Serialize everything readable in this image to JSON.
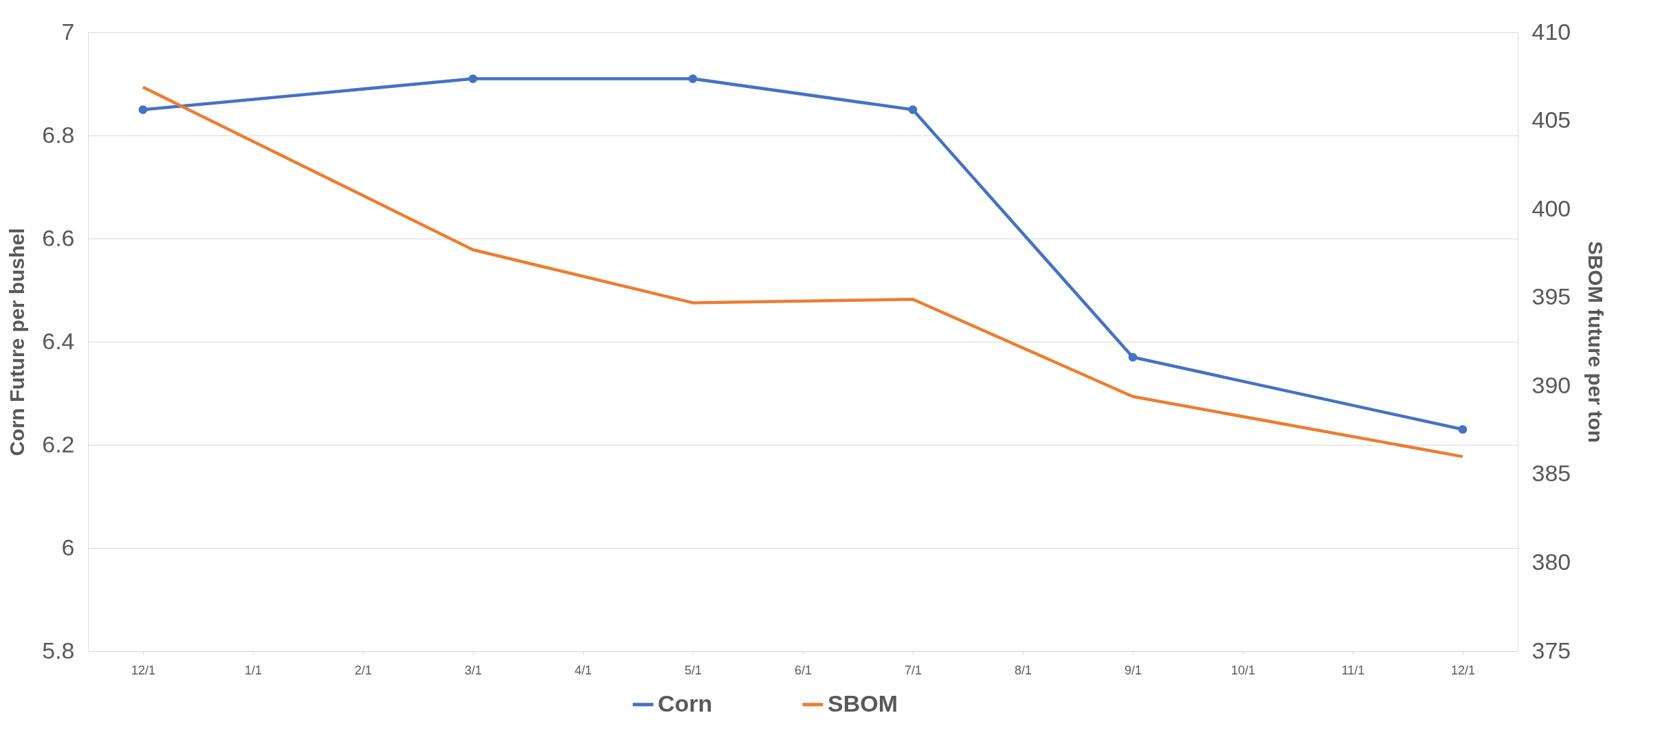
{
  "chart_data": {
    "type": "line",
    "categories": [
      "12/1",
      "1/1",
      "2/1",
      "3/1",
      "4/1",
      "5/1",
      "6/1",
      "7/1",
      "8/1",
      "9/1",
      "10/1",
      "11/1",
      "12/1"
    ],
    "ylabel": "Corn Future per bushel",
    "y2label": "SBOM future per ton",
    "ylim": [
      5.8,
      7
    ],
    "yticks": [
      5.8,
      6,
      6.2,
      6.4,
      6.6,
      6.8,
      7
    ],
    "y2lim": [
      375,
      410
    ],
    "y2ticks": [
      375,
      380,
      385,
      390,
      395,
      400,
      405,
      410
    ],
    "grid": "y",
    "legend": "bottom",
    "series": [
      {
        "name": "Corn",
        "color": "#4472c4",
        "marker": "circle",
        "values": [
          6.85,
          null,
          null,
          6.91,
          null,
          6.91,
          null,
          6.85,
          null,
          6.37,
          null,
          null,
          6.23
        ]
      },
      {
        "name": "SBOM",
        "color": "#ed7d31",
        "marker": "none",
        "axis": "y2",
        "values": [
          406.9,
          null,
          null,
          397.7,
          null,
          394.7,
          null,
          394.9,
          null,
          389.4,
          null,
          null,
          386.0
        ]
      }
    ]
  }
}
